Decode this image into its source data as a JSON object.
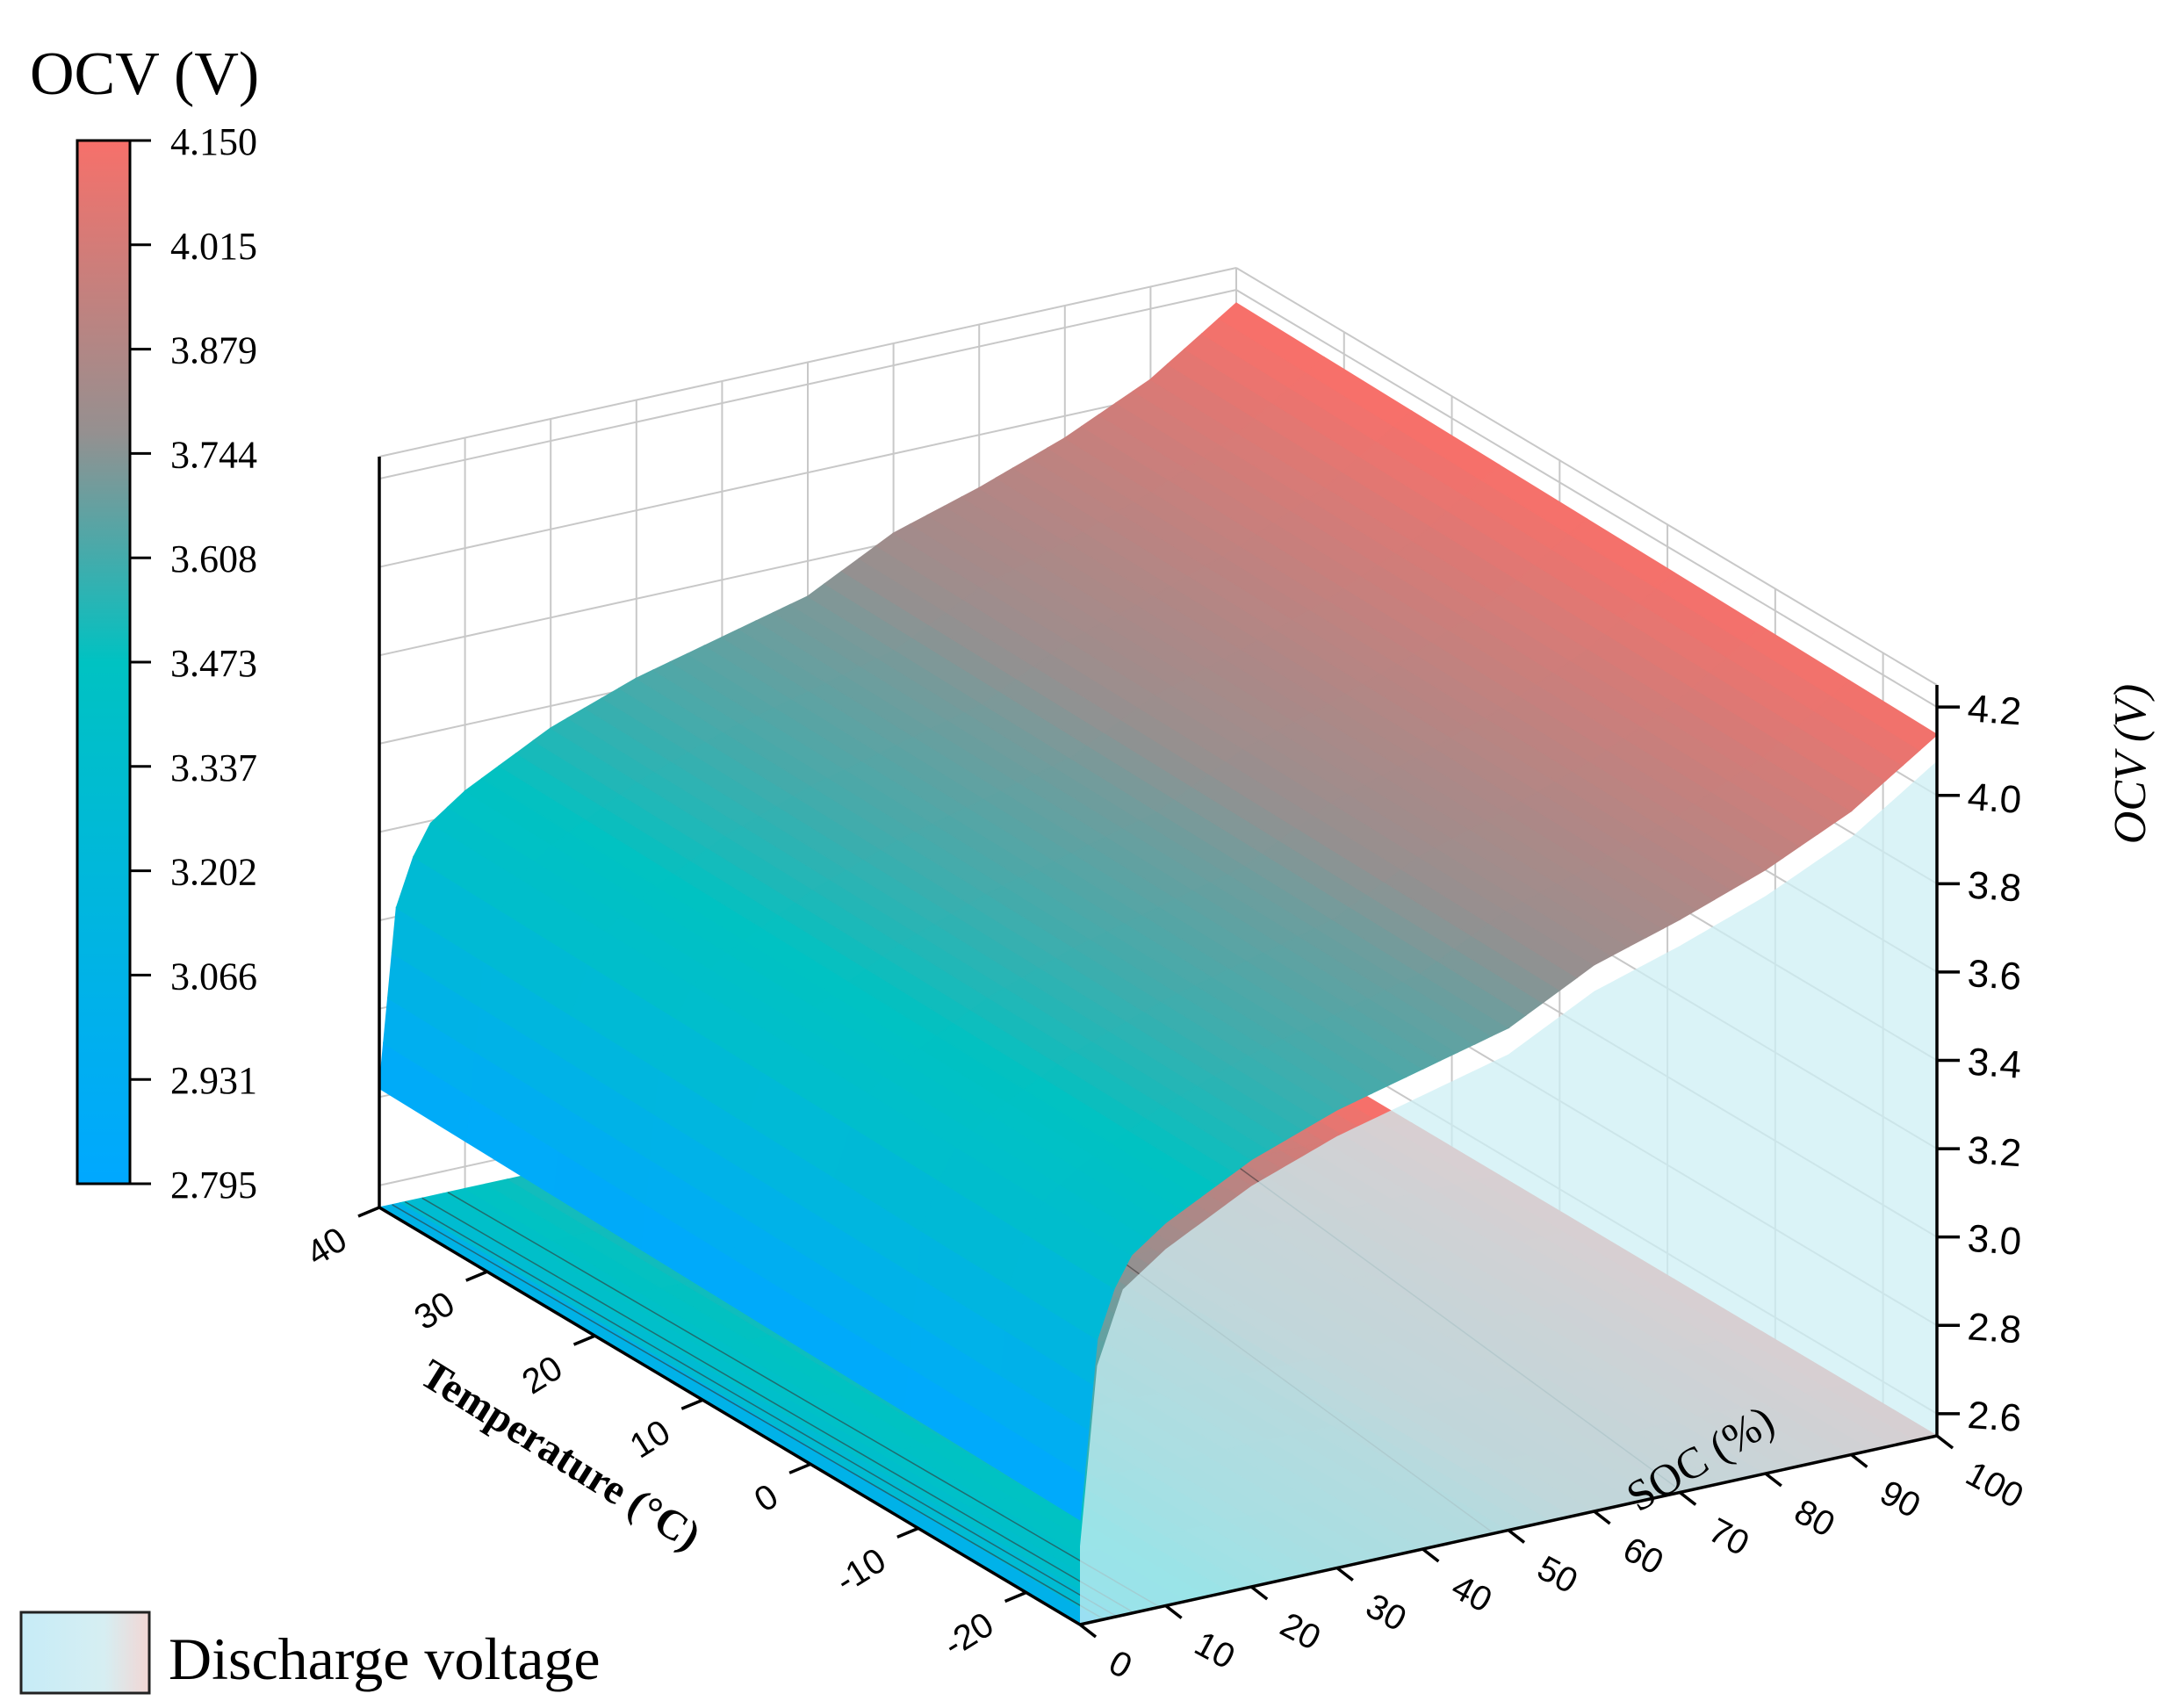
{
  "chart_data": {
    "type": "surface3d",
    "colorbar": {
      "title": "OCV (V)",
      "levels": [
        "4.150",
        "4.015",
        "3.879",
        "3.744",
        "3.608",
        "3.473",
        "3.337",
        "3.202",
        "3.066",
        "2.931",
        "2.795"
      ],
      "range": [
        2.795,
        4.15
      ],
      "colors": {
        "low": "#00a8ff",
        "mid": "#00c2c2",
        "high": "#f7706a"
      }
    },
    "x_axis": {
      "label": "SOC (%)",
      "ticks": [
        "0",
        "10",
        "20",
        "30",
        "40",
        "50",
        "60",
        "70",
        "80",
        "90",
        "100"
      ],
      "range": [
        0,
        100
      ]
    },
    "y_axis": {
      "label": "Temperature (°C)",
      "ticks": [
        "40",
        "30",
        "20",
        "10",
        "0",
        "-10",
        "-20"
      ],
      "range": [
        -25,
        40
      ]
    },
    "z_axis": {
      "label": "OCV (V)",
      "ticks": [
        "2.6",
        "2.8",
        "3.0",
        "3.2",
        "3.4",
        "3.6",
        "3.8",
        "4.0",
        "4.2"
      ],
      "range": [
        2.55,
        4.25
      ]
    },
    "ocv_vs_soc": {
      "soc": [
        0,
        2,
        5,
        10,
        20,
        30,
        40,
        50,
        60,
        70,
        80,
        90,
        100
      ],
      "ocv": [
        2.8,
        3.2,
        3.36,
        3.43,
        3.53,
        3.6,
        3.65,
        3.7,
        3.8,
        3.86,
        3.93,
        4.02,
        4.15
      ]
    },
    "temperature_slope_v_per_c": 0.0005,
    "legend": {
      "entries": [
        "Discharge voltage"
      ],
      "placement": "bottom-left"
    },
    "grid": true
  }
}
